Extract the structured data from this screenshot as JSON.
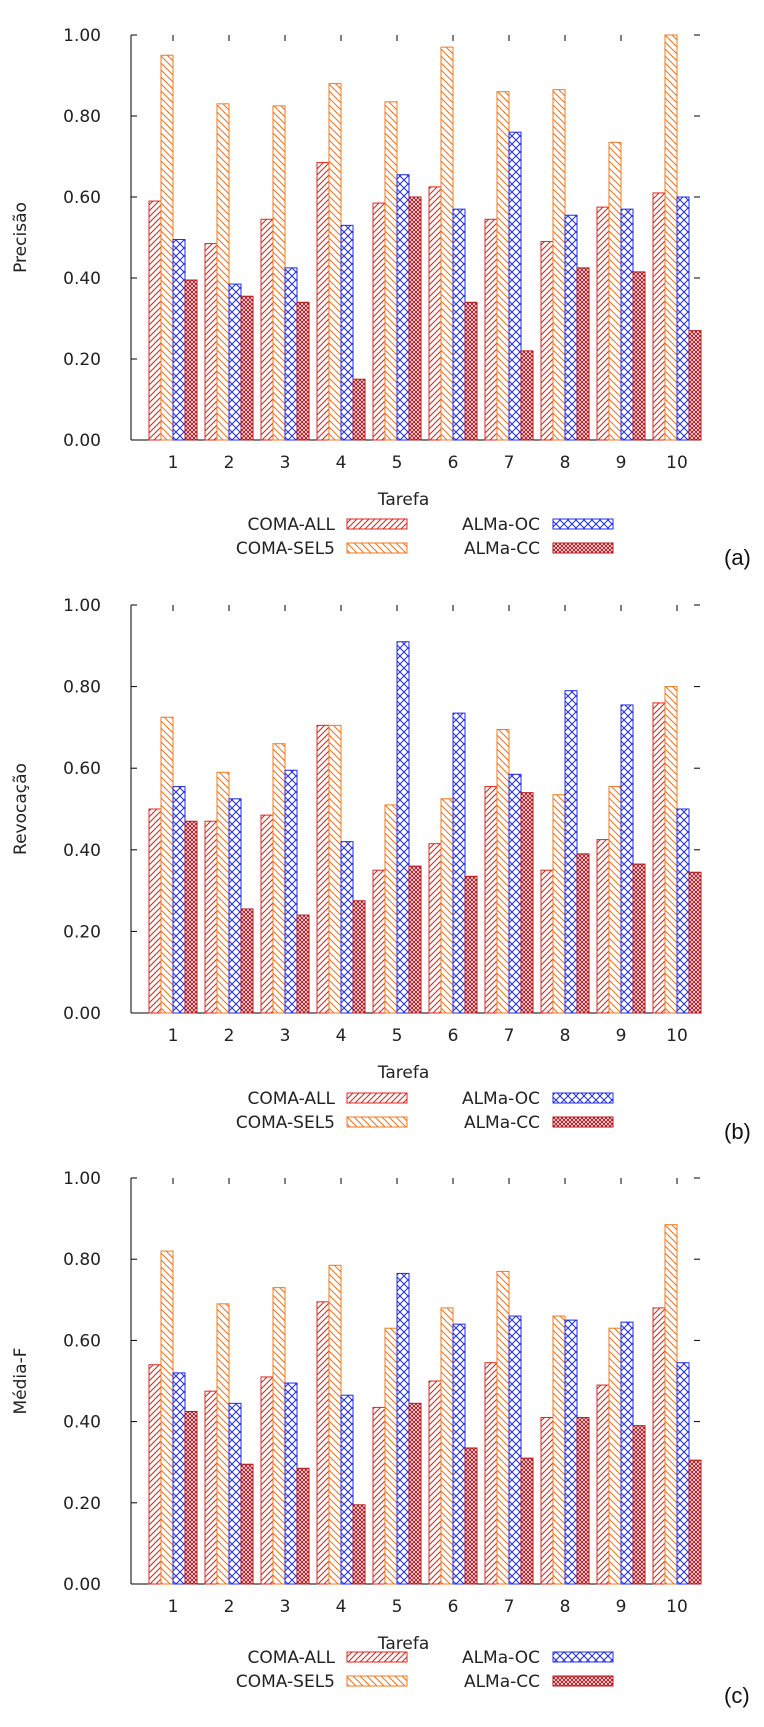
{
  "colors": {
    "red": "#e3241c",
    "orange": "#f07820",
    "blue": "#1f2be6",
    "darkred": "#b3151b"
  },
  "legend": [
    {
      "name": "COMA-ALL",
      "pattern": "diag-red"
    },
    {
      "name": "COMA-SEL5",
      "pattern": "diag-orange"
    },
    {
      "name": "ALMa-OC",
      "pattern": "cross-blue"
    },
    {
      "name": "ALMa-CC",
      "pattern": "cross-darkred"
    }
  ],
  "chart_data": [
    {
      "type": "bar",
      "panel": "(a)",
      "xlabel": "Tarefa",
      "ylabel": "Precisão",
      "ylim": [
        0,
        1
      ],
      "yticks": [
        "0.00",
        "0.20",
        "0.40",
        "0.60",
        "0.80",
        "1.00"
      ],
      "categories": [
        "1",
        "2",
        "3",
        "4",
        "5",
        "6",
        "7",
        "8",
        "9",
        "10"
      ],
      "series": [
        {
          "name": "COMA-ALL",
          "values": [
            0.59,
            0.485,
            0.545,
            0.685,
            0.585,
            0.625,
            0.545,
            0.49,
            0.575,
            0.61
          ]
        },
        {
          "name": "COMA-SEL5",
          "values": [
            0.95,
            0.83,
            0.825,
            0.88,
            0.835,
            0.97,
            0.86,
            0.865,
            0.735,
            1.0
          ]
        },
        {
          "name": "ALMa-OC",
          "values": [
            0.495,
            0.385,
            0.425,
            0.53,
            0.655,
            0.57,
            0.76,
            0.555,
            0.57,
            0.6
          ]
        },
        {
          "name": "ALMa-CC",
          "values": [
            0.395,
            0.355,
            0.34,
            0.15,
            0.6,
            0.34,
            0.22,
            0.425,
            0.415,
            0.27
          ]
        }
      ]
    },
    {
      "type": "bar",
      "panel": "(b)",
      "xlabel": "Tarefa",
      "ylabel": "Revocação",
      "ylim": [
        0,
        1
      ],
      "yticks": [
        "0.00",
        "0.20",
        "0.40",
        "0.60",
        "0.80",
        "1.00"
      ],
      "categories": [
        "1",
        "2",
        "3",
        "4",
        "5",
        "6",
        "7",
        "8",
        "9",
        "10"
      ],
      "series": [
        {
          "name": "COMA-ALL",
          "values": [
            0.5,
            0.47,
            0.485,
            0.705,
            0.35,
            0.415,
            0.555,
            0.35,
            0.425,
            0.76
          ]
        },
        {
          "name": "COMA-SEL5",
          "values": [
            0.725,
            0.59,
            0.66,
            0.705,
            0.51,
            0.525,
            0.695,
            0.535,
            0.555,
            0.8
          ]
        },
        {
          "name": "ALMa-OC",
          "values": [
            0.555,
            0.525,
            0.595,
            0.42,
            0.91,
            0.735,
            0.585,
            0.79,
            0.755,
            0.5
          ]
        },
        {
          "name": "ALMa-CC",
          "values": [
            0.47,
            0.255,
            0.24,
            0.275,
            0.36,
            0.335,
            0.54,
            0.39,
            0.365,
            0.345
          ]
        }
      ]
    },
    {
      "type": "bar",
      "panel": "(c)",
      "xlabel": "Tarefa",
      "ylabel": "Média-F",
      "ylim": [
        0,
        1
      ],
      "yticks": [
        "0.00",
        "0.20",
        "0.40",
        "0.60",
        "0.80",
        "1.00"
      ],
      "categories": [
        "1",
        "2",
        "3",
        "4",
        "5",
        "6",
        "7",
        "8",
        "9",
        "10"
      ],
      "series": [
        {
          "name": "COMA-ALL",
          "values": [
            0.54,
            0.475,
            0.51,
            0.695,
            0.435,
            0.5,
            0.545,
            0.41,
            0.49,
            0.68
          ]
        },
        {
          "name": "COMA-SEL5",
          "values": [
            0.82,
            0.69,
            0.73,
            0.785,
            0.63,
            0.68,
            0.77,
            0.66,
            0.63,
            0.885
          ]
        },
        {
          "name": "ALMa-OC",
          "values": [
            0.52,
            0.445,
            0.495,
            0.465,
            0.765,
            0.64,
            0.66,
            0.65,
            0.645,
            0.545
          ]
        },
        {
          "name": "ALMa-CC",
          "values": [
            0.425,
            0.295,
            0.285,
            0.195,
            0.445,
            0.335,
            0.31,
            0.41,
            0.39,
            0.305
          ]
        }
      ]
    }
  ]
}
